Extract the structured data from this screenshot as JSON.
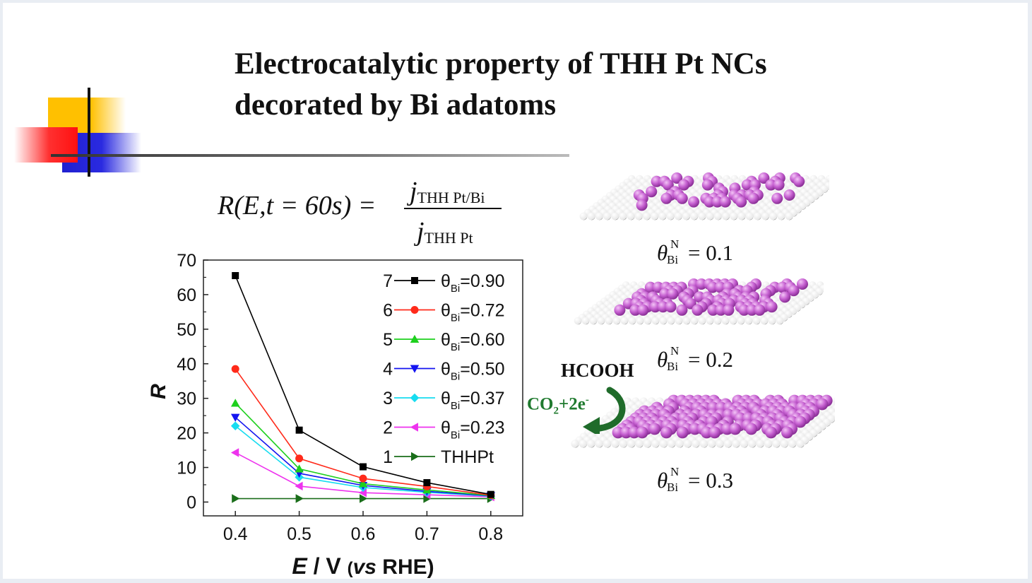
{
  "title": {
    "line1": "Electrocatalytic property of THH Pt NCs",
    "line2": "decorated by Bi adatoms"
  },
  "equation": {
    "lhs": "R(E,t = 60s) =",
    "numerator_j": "j",
    "numerator_sub": "THH Pt/Bi",
    "denominator_j": "j",
    "denominator_sub": "THH Pt"
  },
  "chart_data": {
    "type": "line",
    "x": [
      0.4,
      0.5,
      0.6,
      0.7,
      0.8
    ],
    "xlim": [
      0.35,
      0.85
    ],
    "ylim": [
      -4,
      70
    ],
    "xticks": [
      "0.4",
      "0.5",
      "0.6",
      "0.7",
      "0.8"
    ],
    "yticks": [
      "0",
      "10",
      "20",
      "30",
      "40",
      "50",
      "60",
      "70"
    ],
    "xlabel_E": "E",
    "xlabel_rest": " / V ",
    "xlabel_paren_open": "(",
    "xlabel_vs": "vs",
    "xlabel_rhe": " RHE)",
    "ylabel": "R",
    "legend_position": "top-right",
    "series": [
      {
        "num": "7",
        "theta": "θ",
        "sub": "Bi",
        "value": "=0.90",
        "marker": "square",
        "color": "#000000",
        "values": [
          65.5,
          20.8,
          10.2,
          5.6,
          2.2
        ]
      },
      {
        "num": "6",
        "theta": "θ",
        "sub": "Bi",
        "value": "=0.72",
        "marker": "circle",
        "color": "#ff2a1a",
        "values": [
          38.5,
          12.6,
          6.8,
          4.5,
          2.0
        ]
      },
      {
        "num": "5",
        "theta": "θ",
        "sub": "Bi",
        "value": "=0.60",
        "marker": "triangle-up",
        "color": "#1ed01e",
        "values": [
          28.6,
          9.6,
          5.3,
          3.5,
          1.9
        ]
      },
      {
        "num": "4",
        "theta": "θ",
        "sub": "Bi",
        "value": "=0.50",
        "marker": "triangle-down",
        "color": "#1414f0",
        "values": [
          24.5,
          8.3,
          4.8,
          3.1,
          1.8
        ]
      },
      {
        "num": "3",
        "theta": "θ",
        "sub": "Bi",
        "value": "=0.37",
        "marker": "diamond",
        "color": "#17dcf0",
        "values": [
          22.0,
          7.2,
          4.2,
          2.8,
          1.7
        ]
      },
      {
        "num": "2",
        "theta": "θ",
        "sub": "Bi",
        "value": "=0.23",
        "marker": "triangle-left",
        "color": "#ee33ee",
        "values": [
          14.3,
          4.6,
          2.7,
          2.1,
          1.5
        ]
      },
      {
        "num": "1",
        "theta": "",
        "sub": "",
        "value": "THHPt",
        "marker": "triangle-right",
        "color": "#1a6e1a",
        "values": [
          1.0,
          1.0,
          1.0,
          1.0,
          1.0
        ]
      }
    ]
  },
  "structures": [
    {
      "theta": "θ",
      "sup": "N",
      "sub": "Bi",
      "rest": "= 0.1",
      "coverage": 0.1
    },
    {
      "theta": "θ",
      "sup": "N",
      "sub": "Bi",
      "rest": "= 0.2",
      "coverage": 0.2
    },
    {
      "theta": "θ",
      "sup": "N",
      "sub": "Bi",
      "rest": "= 0.3",
      "coverage": 0.3
    }
  ],
  "reaction": {
    "reactant": "HCOOH",
    "product_co": "CO",
    "product_sub": "2",
    "product_mid": "+2e",
    "product_sup": "-",
    "arrow_color": "#1f6b2a"
  },
  "colors": {
    "atom_pt": "#e6e6e6",
    "atom_bi": "#c55fd0",
    "deco_yellow": "#ffc000",
    "deco_red": "#ff2020",
    "deco_blue": "#2020d0"
  }
}
